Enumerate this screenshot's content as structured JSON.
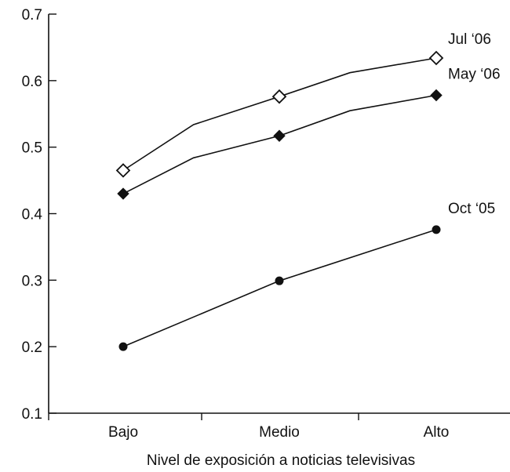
{
  "chart_data": {
    "type": "line",
    "xlabel": "Nivel de exposición a noticias televisivas",
    "ylabel": "",
    "categories": [
      "Bajo",
      "Medio",
      "Alto"
    ],
    "ylim": [
      0.1,
      0.7
    ],
    "yticks": [
      "0.1",
      "0.2",
      "0.3",
      "0.4",
      "0.5",
      "0.6",
      "0.7"
    ],
    "grid": false,
    "series": [
      {
        "name": "Jul ‘06",
        "marker": "open-diamond",
        "values": [
          0.465,
          0.576,
          0.634
        ]
      },
      {
        "name": "May ‘06",
        "marker": "filled-diamond",
        "values": [
          0.43,
          0.517,
          0.578
        ]
      },
      {
        "name": "Oct ‘05",
        "marker": "filled-circle",
        "values": [
          0.2,
          0.299,
          0.376
        ]
      }
    ]
  }
}
